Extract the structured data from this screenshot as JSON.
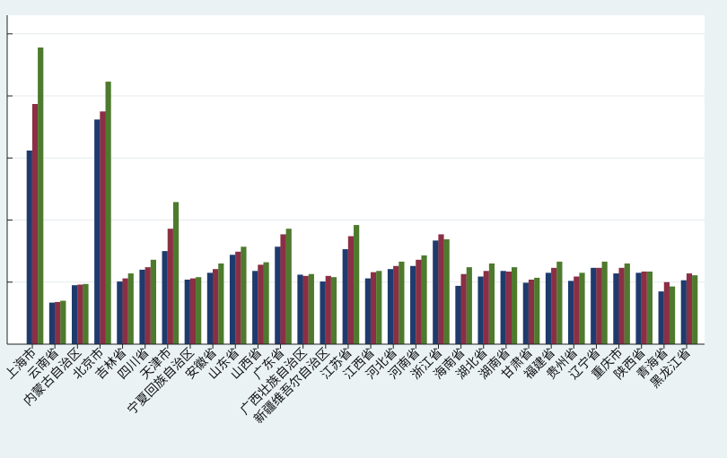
{
  "chart_data": {
    "type": "bar",
    "title": "",
    "xlabel": "",
    "ylabel": "",
    "ylim": [
      0,
      5.3
    ],
    "grid": true,
    "legend": "none",
    "categories": [
      "上海市",
      "云南省",
      "内蒙古自治区",
      "北京市",
      "吉林省",
      "四川省",
      "天津市",
      "宁夏回族自治区",
      "安徽省",
      "山东省",
      "山西省",
      "广东省",
      "广西壮族自治区",
      "新疆维吾尔自治区",
      "江苏省",
      "江西省",
      "河北省",
      "河南省",
      "浙江省",
      "海南省",
      "湖北省",
      "湖南省",
      "甘肃省",
      "福建省",
      "贵州省",
      "辽宁省",
      "重庆市",
      "陕西省",
      "青海省",
      "黑龙江省"
    ],
    "series": [
      {
        "color": "#1f3b6e",
        "values": [
          3.12,
          0.67,
          0.95,
          3.62,
          1.01,
          1.2,
          1.5,
          1.04,
          1.15,
          1.44,
          1.18,
          1.57,
          1.12,
          1.01,
          1.53,
          1.06,
          1.21,
          1.26,
          1.67,
          0.94,
          1.09,
          1.18,
          0.99,
          1.15,
          1.02,
          1.23,
          1.14,
          1.15,
          0.85,
          1.03
        ]
      },
      {
        "color": "#8b2f45",
        "values": [
          3.87,
          0.68,
          0.96,
          3.75,
          1.06,
          1.24,
          1.86,
          1.06,
          1.21,
          1.49,
          1.28,
          1.77,
          1.1,
          1.1,
          1.74,
          1.16,
          1.26,
          1.36,
          1.77,
          1.13,
          1.18,
          1.17,
          1.04,
          1.23,
          1.09,
          1.23,
          1.23,
          1.17,
          1.0,
          1.14
        ]
      },
      {
        "color": "#4e7a2e",
        "values": [
          4.78,
          0.7,
          0.97,
          4.23,
          1.14,
          1.36,
          2.29,
          1.08,
          1.3,
          1.57,
          1.32,
          1.86,
          1.13,
          1.08,
          1.92,
          1.18,
          1.33,
          1.43,
          1.69,
          1.24,
          1.3,
          1.24,
          1.07,
          1.33,
          1.15,
          1.33,
          1.3,
          1.17,
          0.93,
          1.11
        ]
      }
    ]
  }
}
